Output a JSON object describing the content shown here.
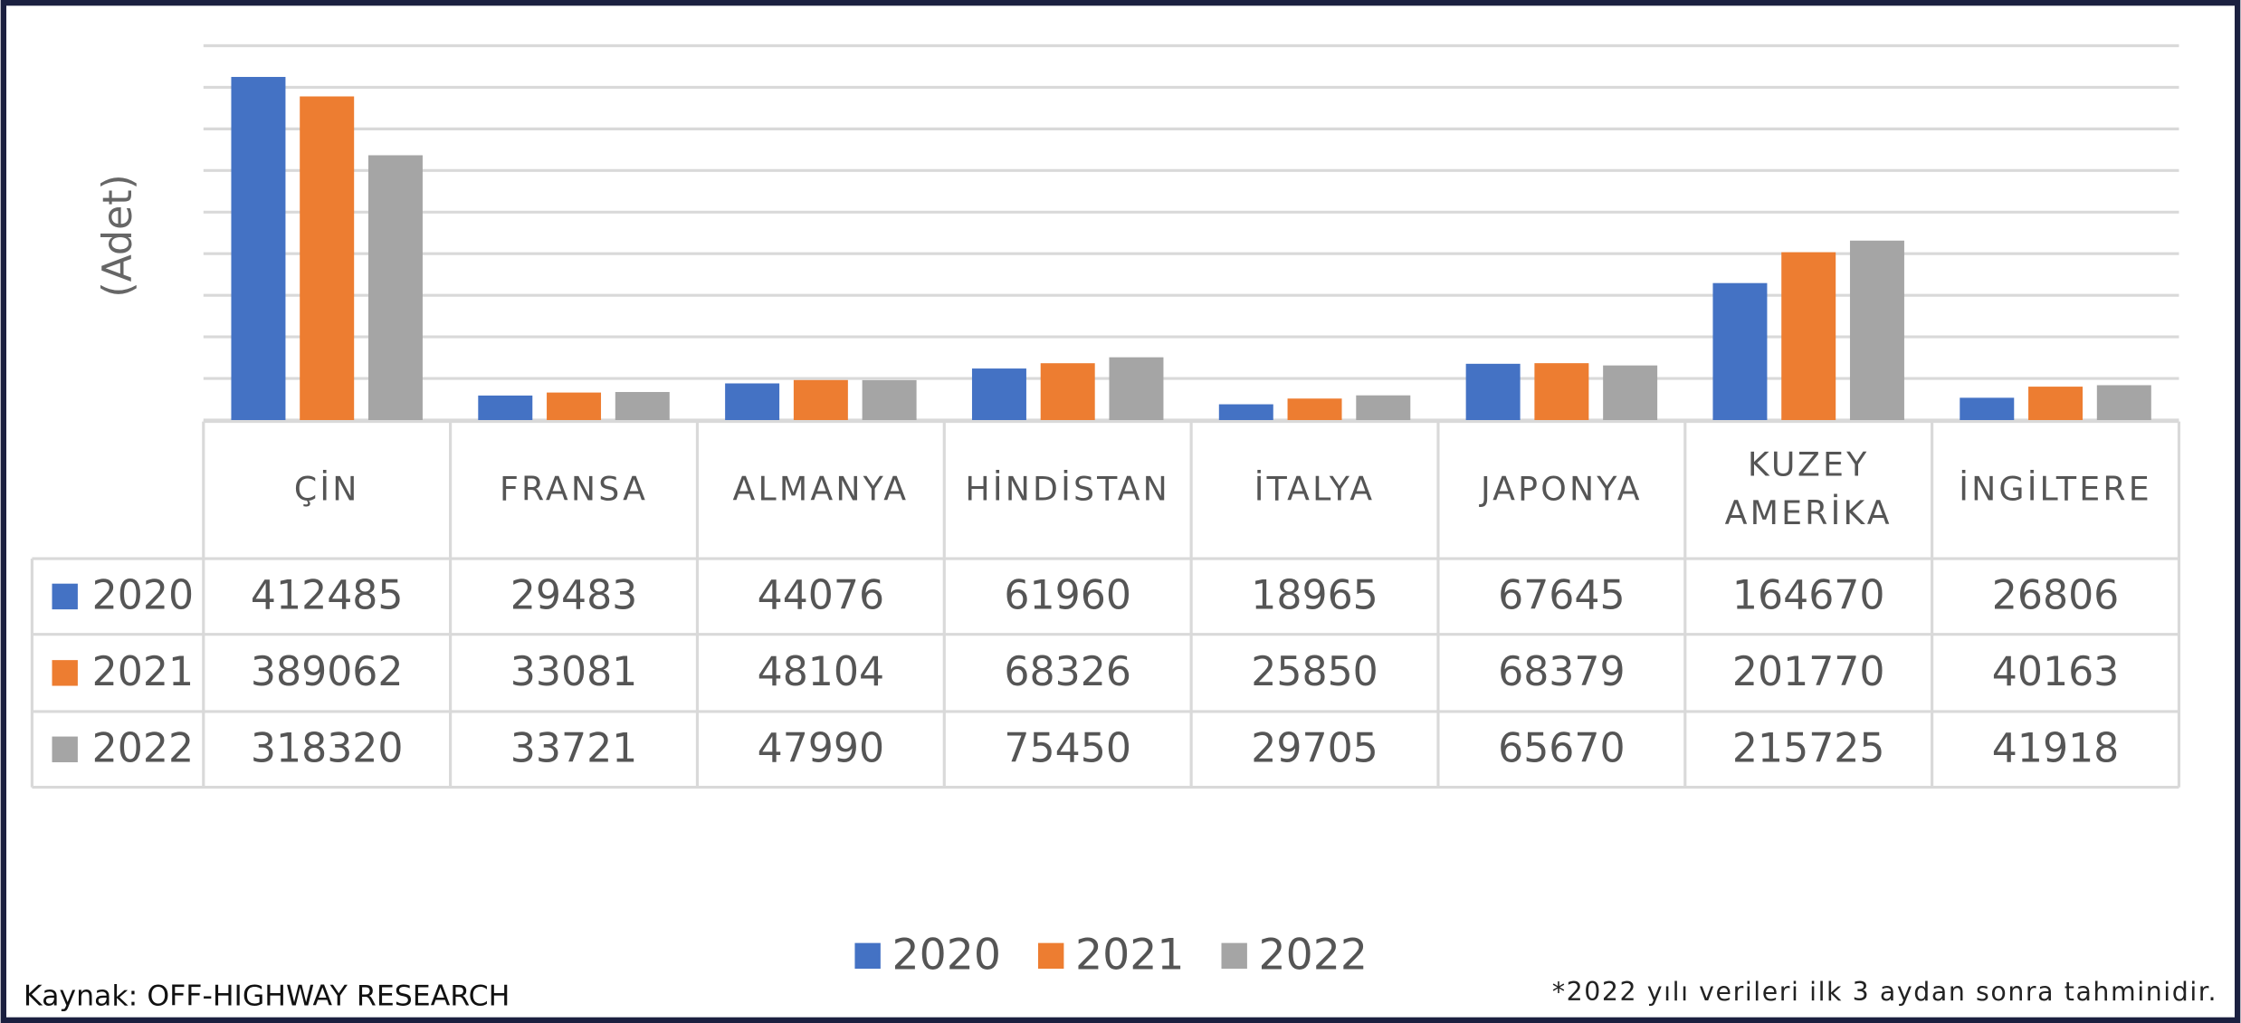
{
  "chart_data": {
    "type": "bar",
    "y_label": "(Adet)",
    "categories": [
      "ÇİN",
      "FRANSA",
      "ALMANYA",
      "HİNDİSTAN",
      "İTALYA",
      "JAPONYA",
      "KUZEY AMERİKA",
      "İNGİLTERE"
    ],
    "series": [
      {
        "name": "2020",
        "color": "#4472c4",
        "values": [
          412485,
          29483,
          44076,
          61960,
          18965,
          67645,
          164670,
          26806
        ]
      },
      {
        "name": "2021",
        "color": "#ed7d31",
        "values": [
          389062,
          33081,
          48104,
          68326,
          25850,
          68379,
          201770,
          40163
        ]
      },
      {
        "name": "2022",
        "color": "#a5a5a5",
        "values": [
          318320,
          33721,
          47990,
          75450,
          29705,
          65670,
          215725,
          41918
        ]
      }
    ],
    "ylim": [
      0,
      450000
    ],
    "yticks": [
      0,
      50000,
      100000,
      150000,
      200000,
      250000,
      300000,
      350000,
      400000,
      450000
    ],
    "grid": true,
    "legend": "bottom",
    "source": "Kaynak: OFF-HIGHWAY RESEARCH",
    "note": "*2022 yılı verileri ilk 3 aydan sonra tahminidir."
  }
}
